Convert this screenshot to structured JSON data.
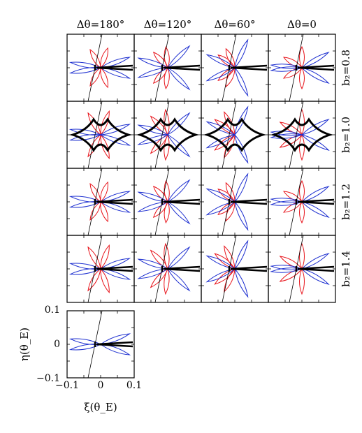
{
  "figure": {
    "column_labels": [
      "Δθ=180°",
      "Δθ=120°",
      "Δθ=60°",
      "Δθ=0"
    ],
    "row_labels": [
      "b₂=0.8",
      "b₂=1.0",
      "b₂=1.2",
      "b₂=1.4"
    ],
    "xlabel": "ξ(θ_E)",
    "ylabel": "η(θ_E)",
    "x_ticks": [
      "−0.1",
      "0",
      "0.1"
    ],
    "y_ticks": [
      "0.1",
      "0",
      "−0.1"
    ],
    "colors": {
      "caustic": "#000000",
      "red_curve": "#e8141b",
      "blue_curve": "#1d2fd0",
      "trajectory": "#000000"
    }
  },
  "chart_data": {
    "type": "panel-grid",
    "grid_rows": 4,
    "grid_cols": 4,
    "extra_panel": "bottom-left reference panel",
    "columns": [
      "Δθ=180°",
      "Δθ=120°",
      "Δθ=60°",
      "Δθ=0"
    ],
    "rows": [
      "b₂=0.8",
      "b₂=1.0",
      "b₂=1.2",
      "b₂=1.4"
    ],
    "xlim": [
      -0.1,
      0.1
    ],
    "ylim": [
      -0.1,
      0.1
    ],
    "series_colors": [
      "#e8141b",
      "#1d2fd0",
      "#000000"
    ]
  }
}
